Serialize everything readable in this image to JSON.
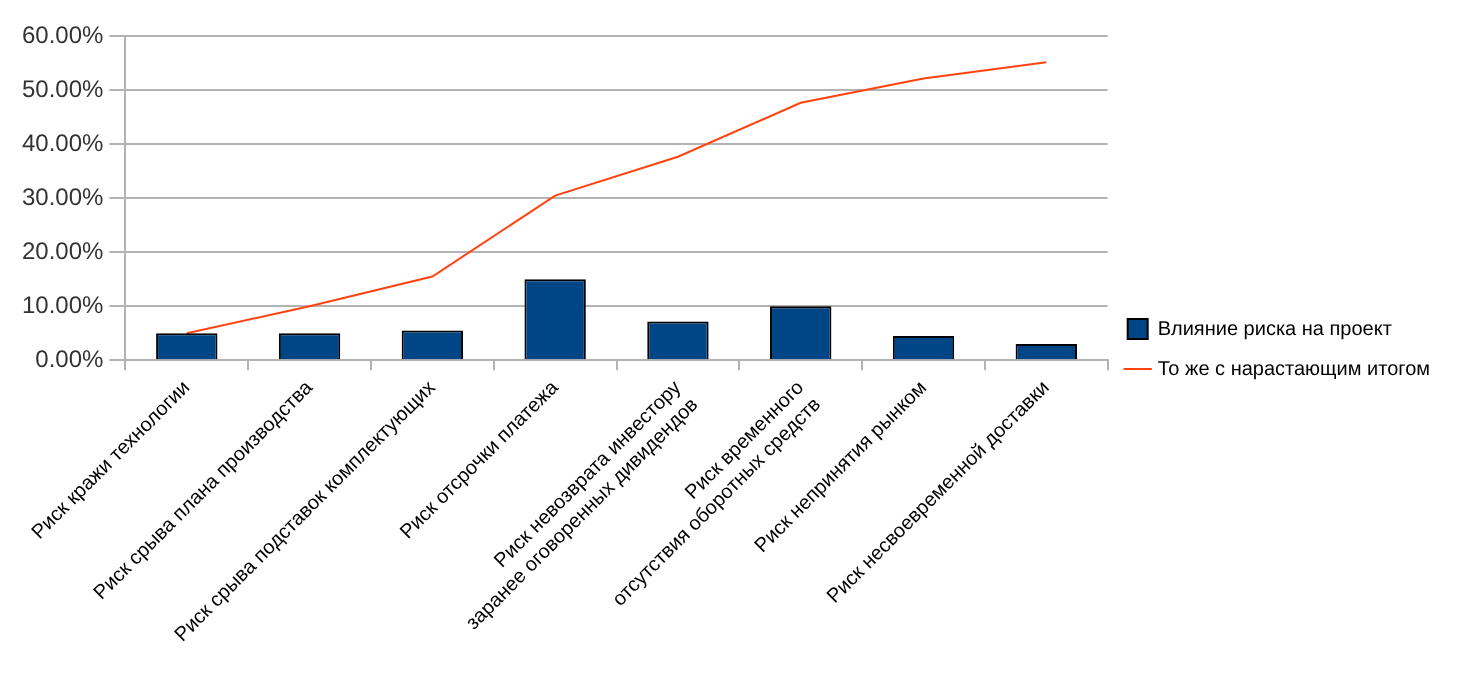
{
  "chart_data": {
    "type": "bar",
    "categories": [
      "Риск кражи технологии",
      "Риск срыва плана производства",
      "Риск срыва подставок комплектующих",
      "Риск отсрочки платежа",
      "Риск невозврата инвестору заранее оговоренных дивидендов",
      "Риск временного отсутствия оборотных средств",
      "Риск непринятия рынком",
      "Риск несвоевременной доставки"
    ],
    "series": [
      {
        "name": "Влияние риска на проект",
        "color": "#004586",
        "values": [
          5,
          5,
          5.5,
          15,
          7.2,
          10,
          4.5,
          3
        ]
      },
      {
        "name": "То же с нарастающим итогом",
        "type": "line",
        "color": "#ff420e",
        "values": [
          5,
          10,
          15.5,
          30.5,
          37.7,
          47.7,
          52.2,
          55.2
        ]
      }
    ],
    "ylim": [
      0,
      60
    ],
    "yticks": [
      {
        "value": 0,
        "label": "0.00%"
      },
      {
        "value": 10,
        "label": "10.00%"
      },
      {
        "value": 20,
        "label": "20.00%"
      },
      {
        "value": 30,
        "label": "30.00%"
      },
      {
        "value": 40,
        "label": "40.00%"
      },
      {
        "value": 50,
        "label": "50.00%"
      },
      {
        "value": 60,
        "label": "60.00%"
      }
    ],
    "grid": "y",
    "legend": "right",
    "marker": "none"
  }
}
